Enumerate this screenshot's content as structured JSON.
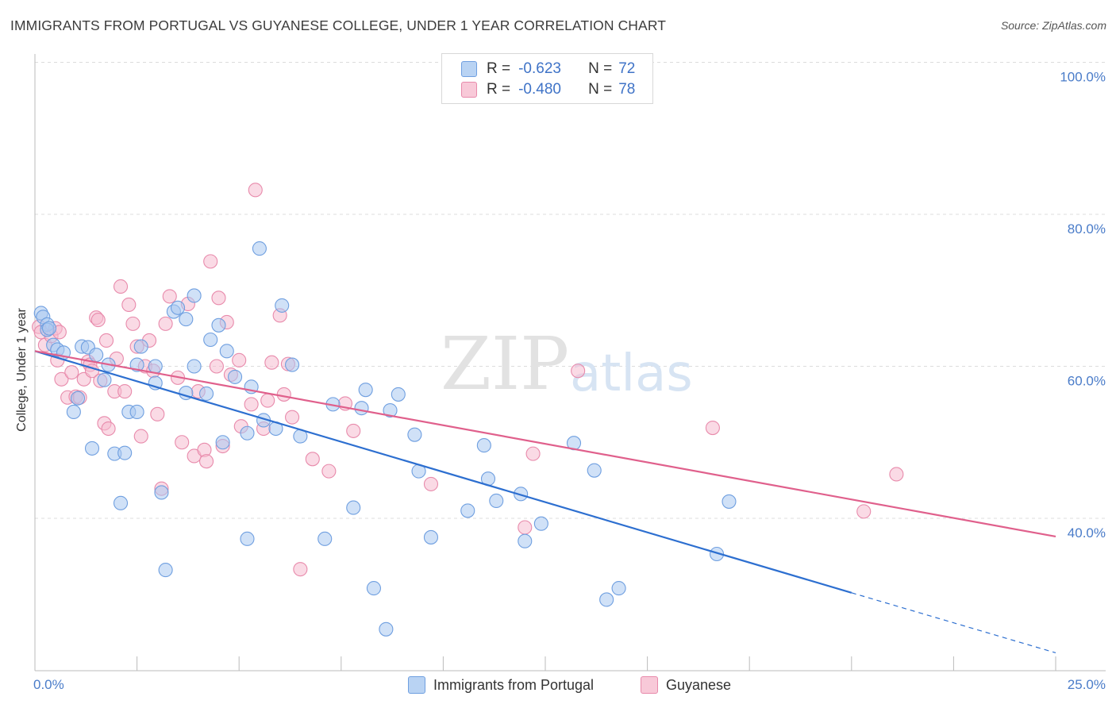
{
  "title": "IMMIGRANTS FROM PORTUGAL VS GUYANESE COLLEGE, UNDER 1 YEAR CORRELATION CHART",
  "source": "Source: ZipAtlas.com",
  "watermark": {
    "zip": "ZIP",
    "atlas": "atlas"
  },
  "legend": {
    "portugal": {
      "r_label": "R =",
      "r_value": "-0.623",
      "n_label": "N =",
      "n_value": "72"
    },
    "guyanese": {
      "r_label": "R =",
      "r_value": "-0.480",
      "n_label": "N =",
      "n_value": "78"
    }
  },
  "colors": {
    "blue_fill": "#a9c8f0",
    "blue_stroke": "#6f9fe0",
    "blue_line": "#2d6fd0",
    "pink_fill": "#f6bcd0",
    "pink_stroke": "#e88aab",
    "pink_line": "#e0608c",
    "tick_text": "#4a7cc9",
    "grid": "#dcdcdc"
  },
  "chart_data": {
    "type": "scatter",
    "title": "IMMIGRANTS FROM PORTUGAL VS GUYANESE COLLEGE, UNDER 1 YEAR CORRELATION CHART",
    "xlabel": "",
    "ylabel": "College, Under 1 year",
    "xlim": [
      0,
      25
    ],
    "ylim": [
      20,
      102
    ],
    "x_tick_labels": [
      "0.0%",
      "25.0%"
    ],
    "y_ticks": [
      40,
      60,
      80,
      100
    ],
    "y_tick_labels": [
      "40.0%",
      "60.0%",
      "80.0%",
      "100.0%"
    ],
    "series": [
      {
        "name": "Immigrants from Portugal",
        "color": "blue",
        "trend": {
          "x0": 0,
          "y0": 62.0,
          "x1": 20.0,
          "y1": 30.2,
          "dashed_to_x": 25,
          "dashed_to_y": 22.3
        },
        "points": [
          [
            0.15,
            67.0
          ],
          [
            0.2,
            66.5
          ],
          [
            0.3,
            65.5
          ],
          [
            0.3,
            64.8
          ],
          [
            0.35,
            65.0
          ],
          [
            0.45,
            62.8
          ],
          [
            0.55,
            62.2
          ],
          [
            0.7,
            61.8
          ],
          [
            1.15,
            62.6
          ],
          [
            1.3,
            62.5
          ],
          [
            1.5,
            61.5
          ],
          [
            0.95,
            54.0
          ],
          [
            1.05,
            55.8
          ],
          [
            1.4,
            49.2
          ],
          [
            1.7,
            58.2
          ],
          [
            1.8,
            60.2
          ],
          [
            1.95,
            48.5
          ],
          [
            2.1,
            42.0
          ],
          [
            2.2,
            48.6
          ],
          [
            2.3,
            54.0
          ],
          [
            2.5,
            54.0
          ],
          [
            2.5,
            60.2
          ],
          [
            2.6,
            62.6
          ],
          [
            2.95,
            60.0
          ],
          [
            2.95,
            57.8
          ],
          [
            3.1,
            43.4
          ],
          [
            3.2,
            33.2
          ],
          [
            3.4,
            67.2
          ],
          [
            3.5,
            67.7
          ],
          [
            3.7,
            66.2
          ],
          [
            3.7,
            56.5
          ],
          [
            3.9,
            69.3
          ],
          [
            3.9,
            60.0
          ],
          [
            4.2,
            56.4
          ],
          [
            4.3,
            63.5
          ],
          [
            4.5,
            65.4
          ],
          [
            4.6,
            50.0
          ],
          [
            4.7,
            62.0
          ],
          [
            4.9,
            58.6
          ],
          [
            5.2,
            51.2
          ],
          [
            5.2,
            37.3
          ],
          [
            5.3,
            57.3
          ],
          [
            5.5,
            75.5
          ],
          [
            5.6,
            52.9
          ],
          [
            5.9,
            51.8
          ],
          [
            6.05,
            68.0
          ],
          [
            6.3,
            60.2
          ],
          [
            6.5,
            50.8
          ],
          [
            7.1,
            37.3
          ],
          [
            7.3,
            55.0
          ],
          [
            7.8,
            41.4
          ],
          [
            8.0,
            54.5
          ],
          [
            8.1,
            56.9
          ],
          [
            8.3,
            30.8
          ],
          [
            8.6,
            25.4
          ],
          [
            8.7,
            54.2
          ],
          [
            8.9,
            56.3
          ],
          [
            9.3,
            51.0
          ],
          [
            9.4,
            46.2
          ],
          [
            9.7,
            37.5
          ],
          [
            10.6,
            41.0
          ],
          [
            11.0,
            49.6
          ],
          [
            11.1,
            45.2
          ],
          [
            11.3,
            42.3
          ],
          [
            11.9,
            43.2
          ],
          [
            12.0,
            37.0
          ],
          [
            12.4,
            39.3
          ],
          [
            13.2,
            49.9
          ],
          [
            13.7,
            46.3
          ],
          [
            14.0,
            29.3
          ],
          [
            14.3,
            30.8
          ],
          [
            16.7,
            35.3
          ],
          [
            17.0,
            42.2
          ]
        ]
      },
      {
        "name": "Guyanese",
        "color": "pink",
        "trend": {
          "x0": 0,
          "y0": 62.0,
          "x1": 25,
          "y1": 37.6
        },
        "points": [
          [
            0.1,
            65.2
          ],
          [
            0.15,
            64.5
          ],
          [
            0.25,
            62.8
          ],
          [
            0.4,
            64.0
          ],
          [
            0.5,
            65.0
          ],
          [
            0.55,
            60.8
          ],
          [
            0.6,
            64.5
          ],
          [
            0.65,
            58.3
          ],
          [
            0.8,
            55.9
          ],
          [
            0.9,
            59.2
          ],
          [
            1.0,
            56.0
          ],
          [
            1.1,
            55.9
          ],
          [
            1.2,
            58.3
          ],
          [
            1.3,
            60.6
          ],
          [
            1.35,
            60.2
          ],
          [
            1.4,
            59.4
          ],
          [
            1.5,
            66.4
          ],
          [
            1.55,
            66.1
          ],
          [
            1.6,
            58.1
          ],
          [
            1.7,
            52.5
          ],
          [
            1.75,
            63.4
          ],
          [
            1.8,
            51.8
          ],
          [
            1.95,
            56.7
          ],
          [
            2.0,
            61.0
          ],
          [
            2.1,
            70.5
          ],
          [
            2.2,
            56.7
          ],
          [
            2.3,
            68.1
          ],
          [
            2.4,
            65.6
          ],
          [
            2.5,
            62.6
          ],
          [
            2.6,
            50.8
          ],
          [
            2.7,
            60.0
          ],
          [
            2.8,
            63.4
          ],
          [
            2.9,
            59.4
          ],
          [
            3.0,
            53.7
          ],
          [
            3.1,
            43.9
          ],
          [
            3.2,
            65.6
          ],
          [
            3.3,
            69.2
          ],
          [
            3.5,
            58.5
          ],
          [
            3.6,
            50.0
          ],
          [
            3.75,
            68.2
          ],
          [
            3.9,
            48.2
          ],
          [
            4.0,
            56.7
          ],
          [
            4.15,
            49.0
          ],
          [
            4.2,
            47.5
          ],
          [
            4.3,
            73.8
          ],
          [
            4.45,
            60.0
          ],
          [
            4.5,
            69.0
          ],
          [
            4.6,
            49.5
          ],
          [
            4.7,
            65.8
          ],
          [
            4.8,
            58.9
          ],
          [
            5.0,
            60.8
          ],
          [
            5.05,
            52.1
          ],
          [
            5.3,
            55.0
          ],
          [
            5.4,
            83.2
          ],
          [
            5.6,
            51.8
          ],
          [
            5.7,
            55.5
          ],
          [
            5.8,
            60.5
          ],
          [
            6.0,
            66.7
          ],
          [
            6.1,
            56.3
          ],
          [
            6.2,
            60.3
          ],
          [
            6.3,
            53.3
          ],
          [
            6.5,
            33.3
          ],
          [
            6.8,
            47.8
          ],
          [
            7.2,
            46.2
          ],
          [
            7.6,
            55.1
          ],
          [
            7.8,
            51.5
          ],
          [
            9.7,
            44.5
          ],
          [
            12.0,
            38.8
          ],
          [
            12.2,
            48.5
          ],
          [
            13.3,
            59.4
          ],
          [
            16.6,
            51.9
          ],
          [
            20.3,
            40.9
          ],
          [
            21.1,
            45.8
          ]
        ]
      }
    ]
  },
  "bottom_legend": {
    "portugal": "Immigrants from Portugal",
    "guyanese": "Guyanese"
  }
}
